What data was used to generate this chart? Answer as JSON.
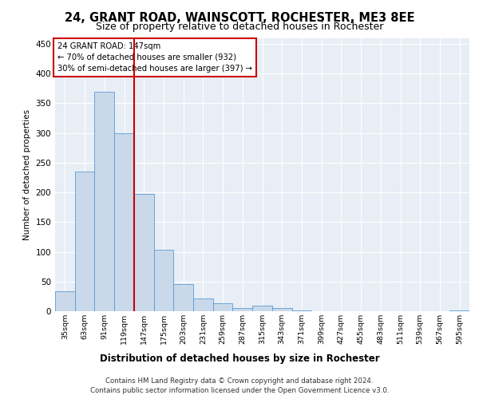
{
  "title_line1": "24, GRANT ROAD, WAINSCOTT, ROCHESTER, ME3 8EE",
  "title_line2": "Size of property relative to detached houses in Rochester",
  "xlabel": "Distribution of detached houses by size in Rochester",
  "ylabel": "Number of detached properties",
  "categories": [
    "35sqm",
    "63sqm",
    "91sqm",
    "119sqm",
    "147sqm",
    "175sqm",
    "203sqm",
    "231sqm",
    "259sqm",
    "287sqm",
    "315sqm",
    "343sqm",
    "371sqm",
    "399sqm",
    "427sqm",
    "455sqm",
    "483sqm",
    "511sqm",
    "539sqm",
    "567sqm",
    "595sqm"
  ],
  "values": [
    33,
    235,
    370,
    300,
    197,
    104,
    46,
    22,
    14,
    5,
    10,
    5,
    2,
    0,
    0,
    0,
    0,
    0,
    0,
    0,
    2
  ],
  "bar_color": "#c9d9ea",
  "bar_edge_color": "#5b9bd5",
  "vline_color": "#cc0000",
  "vline_x_index": 4,
  "annotation_title": "24 GRANT ROAD: 147sqm",
  "annotation_line1": "← 70% of detached houses are smaller (932)",
  "annotation_line2": "30% of semi-detached houses are larger (397) →",
  "annotation_box_color": "#cc0000",
  "ylim": [
    0,
    460
  ],
  "yticks": [
    0,
    50,
    100,
    150,
    200,
    250,
    300,
    350,
    400,
    450
  ],
  "footer_line1": "Contains HM Land Registry data © Crown copyright and database right 2024.",
  "footer_line2": "Contains public sector information licensed under the Open Government Licence v3.0.",
  "plot_bg_color": "#e8eef5"
}
